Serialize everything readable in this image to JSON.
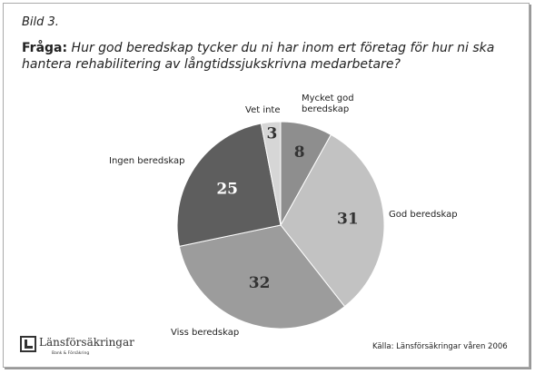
{
  "chart_data": {
    "type": "pie",
    "title": "Bild 3.",
    "question_label": "Fråga:",
    "question": "Hur god beredskap tycker du ni har inom ert företag för hur ni ska hantera rehabilitering av långtidssjukskrivna medarbetare?",
    "categories": [
      "Mycket god beredskap",
      "God beredskap",
      "Viss beredskap",
      "Ingen beredskap",
      "Vet inte"
    ],
    "values": [
      8,
      31,
      32,
      25,
      3
    ],
    "colors": [
      "#8e8e8e",
      "#c2c2c2",
      "#9c9c9c",
      "#5e5e5e",
      "#d6d6d6"
    ],
    "source": "Källa: Länsförsäkringar våren 2006",
    "logo": "Länsförsäkringar",
    "logo_tagline": "Bank & Försäkring"
  }
}
